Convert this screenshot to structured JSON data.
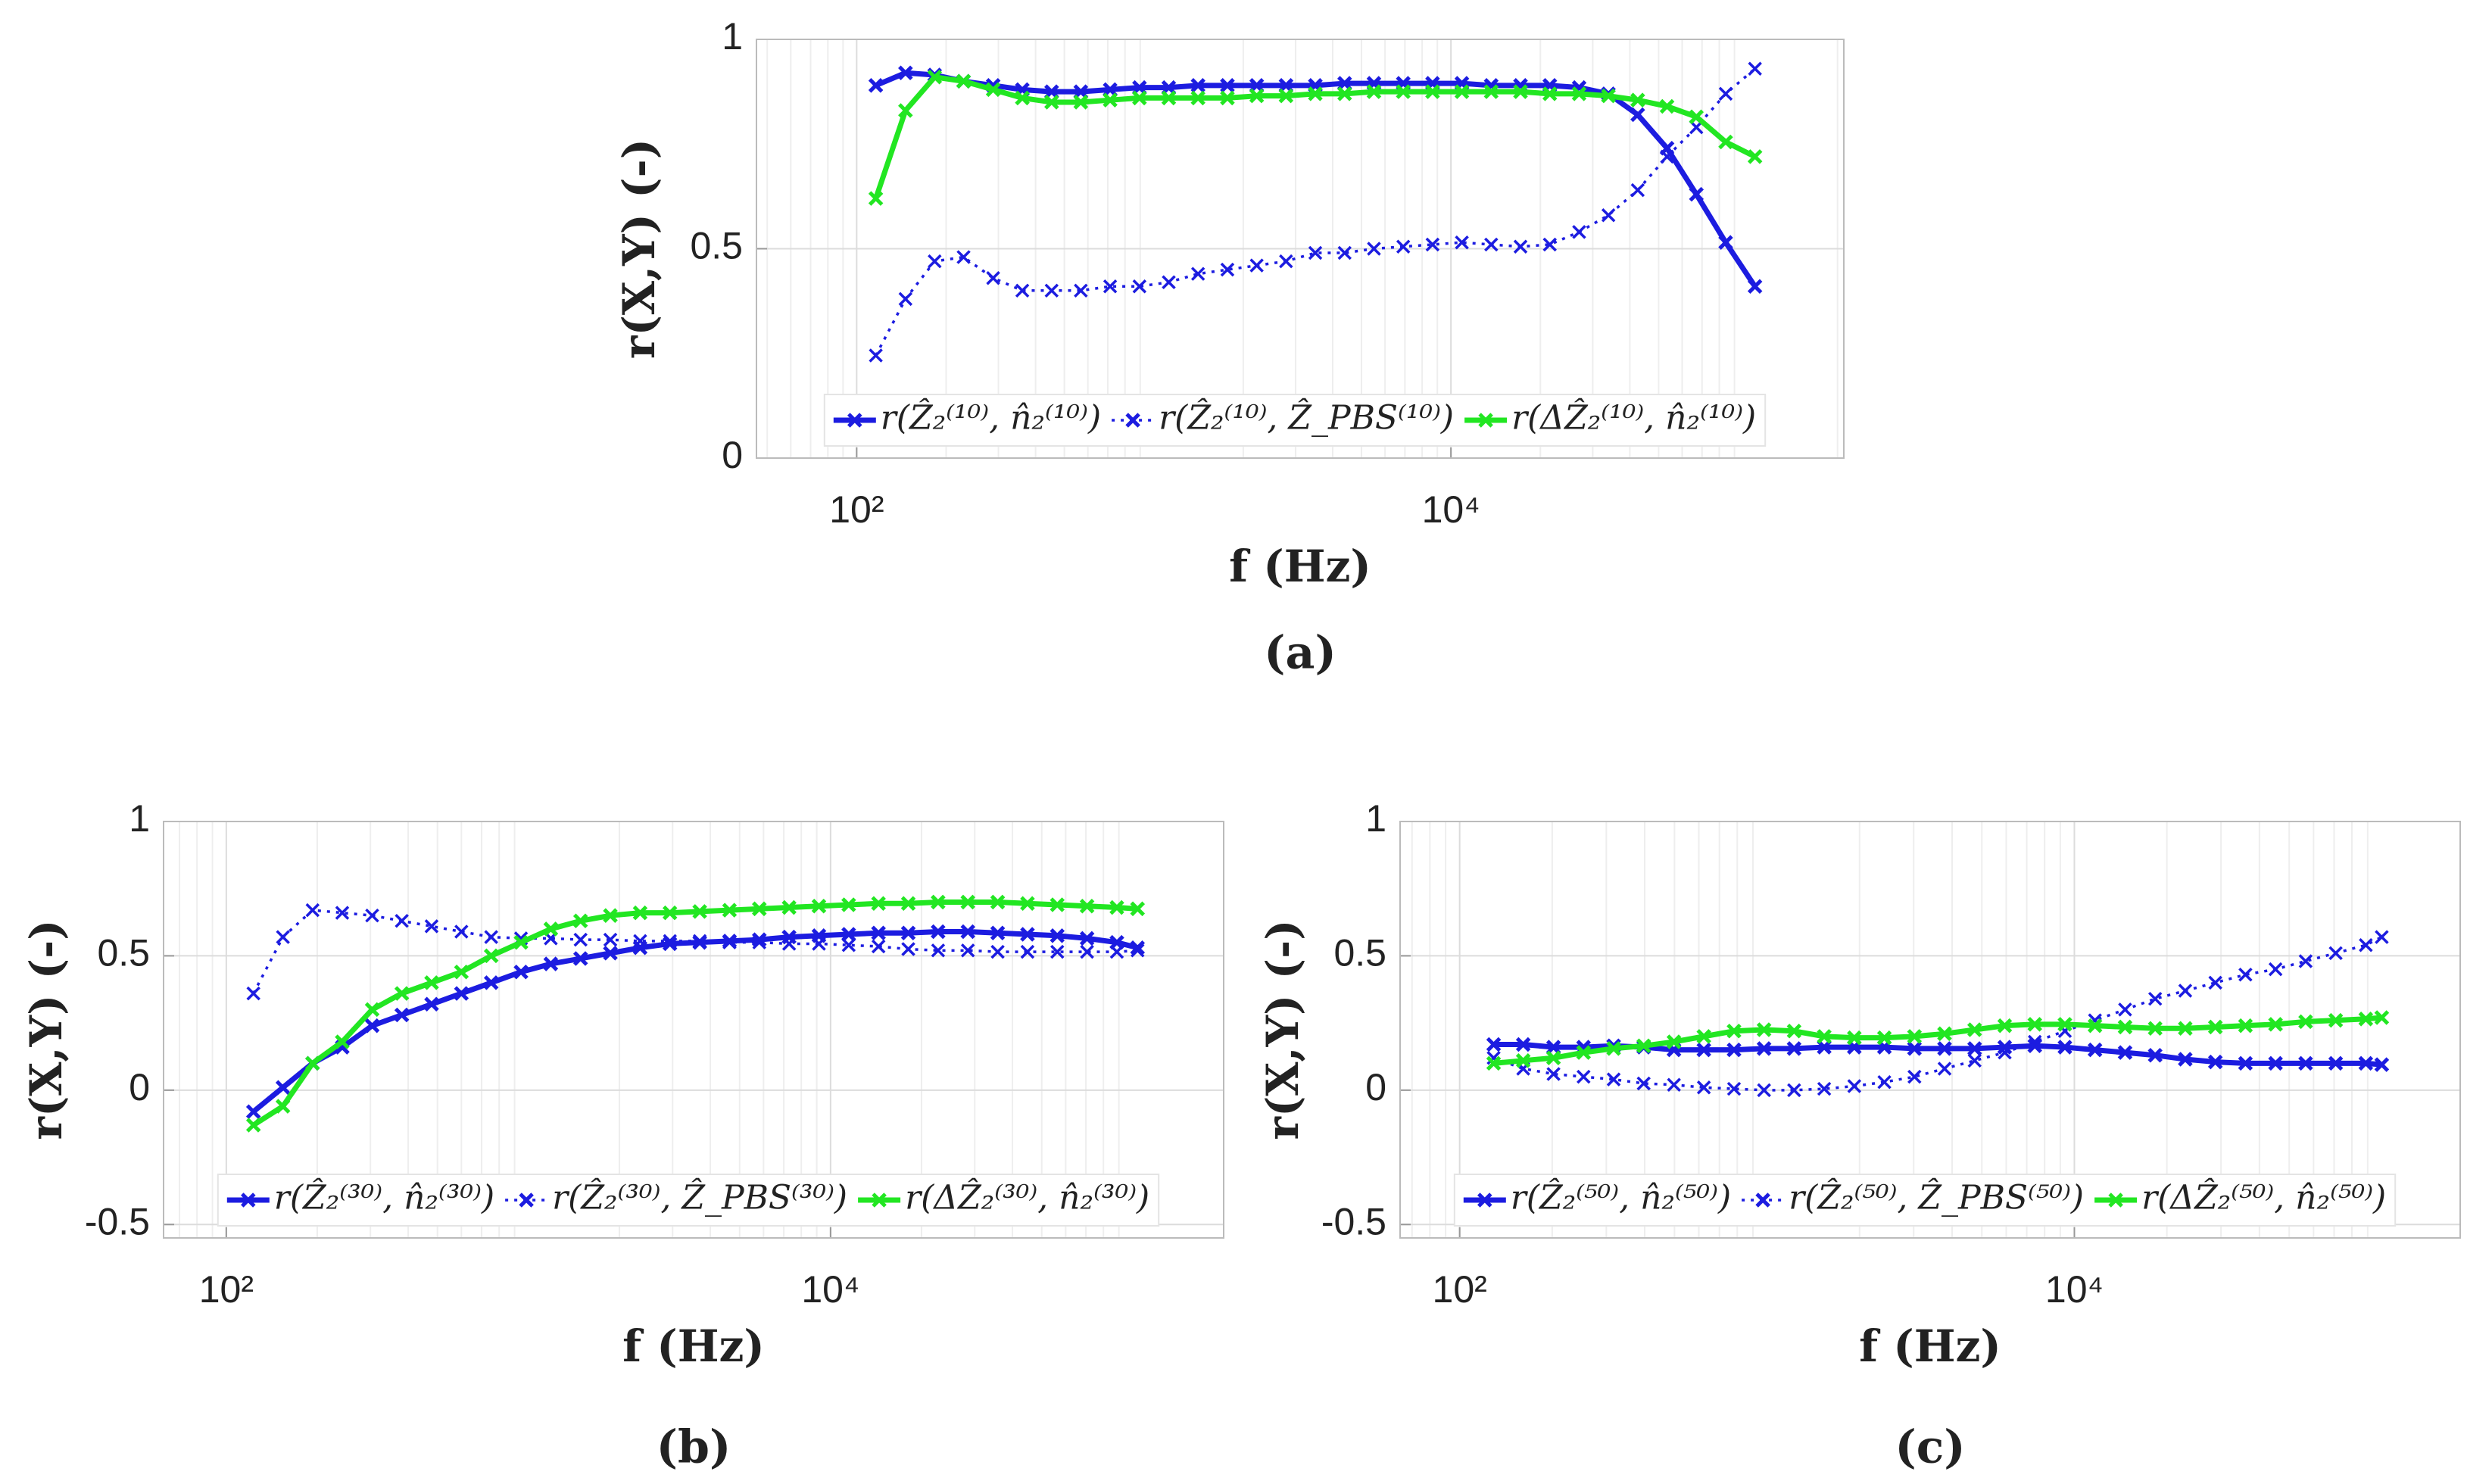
{
  "chart_data": [
    {
      "type": "line",
      "panel_label": "(a)",
      "xlabel": "f (Hz)",
      "ylabel": "r(X,Y) (-)",
      "xscale": "log",
      "grid": true,
      "minor_grid": true,
      "legend": "south",
      "xlim": [
        46,
        210000
      ],
      "ylim": [
        0,
        1
      ],
      "xticks": [
        {
          "value": 100,
          "label": "10²"
        },
        {
          "value": 10000,
          "label": "10⁴"
        }
      ],
      "yticks": [
        0,
        0.5,
        1
      ],
      "x": [
        116,
        146,
        183,
        229,
        288,
        361,
        453,
        568,
        713,
        895,
        1123,
        1409,
        1769,
        2220,
        2786,
        3496,
        4388,
        5507,
        6911,
        8673,
        10885,
        13661,
        17145,
        21516,
        27003,
        33889,
        42530,
        53375,
        66986,
        84067,
        105504
      ],
      "series": [
        {
          "name": "r(Ẑ₂⁽¹⁰⁾, n̂₂⁽¹⁰⁾)",
          "color": "#1c1ce0",
          "dash": "solid",
          "values": [
            0.89,
            0.92,
            0.915,
            0.9,
            0.89,
            0.88,
            0.875,
            0.875,
            0.88,
            0.885,
            0.885,
            0.89,
            0.89,
            0.89,
            0.89,
            0.89,
            0.895,
            0.895,
            0.895,
            0.895,
            0.895,
            0.89,
            0.89,
            0.89,
            0.885,
            0.87,
            0.82,
            0.74,
            0.63,
            0.515,
            0.41
          ]
        },
        {
          "name": "r(Ẑ₂⁽¹⁰⁾, Ẑ_PBS⁽¹⁰⁾)",
          "color": "#1c1ce0",
          "dash": "dotted",
          "values": [
            0.245,
            0.38,
            0.47,
            0.48,
            0.43,
            0.4,
            0.4,
            0.4,
            0.41,
            0.41,
            0.42,
            0.44,
            0.45,
            0.46,
            0.47,
            0.49,
            0.49,
            0.5,
            0.505,
            0.51,
            0.515,
            0.51,
            0.505,
            0.51,
            0.54,
            0.58,
            0.64,
            0.72,
            0.79,
            0.87,
            0.93
          ]
        },
        {
          "name": "r(ΔẐ₂⁽¹⁰⁾, n̂₂⁽¹⁰⁾)",
          "color": "#22e622",
          "dash": "solid",
          "values": [
            0.62,
            0.83,
            0.91,
            0.9,
            0.88,
            0.86,
            0.85,
            0.85,
            0.855,
            0.86,
            0.86,
            0.86,
            0.86,
            0.865,
            0.865,
            0.87,
            0.87,
            0.875,
            0.875,
            0.875,
            0.875,
            0.875,
            0.875,
            0.87,
            0.87,
            0.865,
            0.855,
            0.84,
            0.815,
            0.755,
            0.72
          ]
        }
      ]
    },
    {
      "type": "line",
      "panel_label": "(b)",
      "xlabel": "f (Hz)",
      "ylabel": "r(X,Y) (-)",
      "xscale": "log",
      "grid": true,
      "minor_grid": true,
      "legend": "south",
      "xlim": [
        62,
        200000
      ],
      "ylim": [
        -0.55,
        1
      ],
      "xticks": [
        {
          "value": 100,
          "label": "10²"
        },
        {
          "value": 10000,
          "label": "10⁴"
        }
      ],
      "yticks": [
        -0.5,
        0,
        0.5,
        1
      ],
      "x": [
        123,
        154,
        193,
        242,
        304,
        381,
        478,
        600,
        753,
        945,
        1186,
        1488,
        1867,
        2343,
        2940,
        3690,
        4630,
        5810,
        7292,
        9151,
        11483,
        14410,
        18084,
        22694,
        28479,
        35738,
        44848,
        56280,
        70626,
        88629,
        103753
      ],
      "series": [
        {
          "name": "r(Ẑ₂⁽³⁰⁾, n̂₂⁽³⁰⁾)",
          "color": "#1c1ce0",
          "dash": "solid",
          "values": [
            -0.08,
            0.01,
            0.1,
            0.16,
            0.24,
            0.28,
            0.32,
            0.36,
            0.4,
            0.44,
            0.47,
            0.49,
            0.51,
            0.53,
            0.545,
            0.55,
            0.555,
            0.56,
            0.57,
            0.575,
            0.58,
            0.585,
            0.585,
            0.59,
            0.59,
            0.585,
            0.58,
            0.575,
            0.565,
            0.55,
            0.53
          ]
        },
        {
          "name": "r(Ẑ₂⁽³⁰⁾, Ẑ_PBS⁽³⁰⁾)",
          "color": "#1c1ce0",
          "dash": "dotted",
          "values": [
            0.36,
            0.57,
            0.67,
            0.66,
            0.65,
            0.63,
            0.61,
            0.59,
            0.57,
            0.565,
            0.565,
            0.56,
            0.56,
            0.555,
            0.555,
            0.555,
            0.55,
            0.55,
            0.545,
            0.545,
            0.54,
            0.535,
            0.525,
            0.52,
            0.52,
            0.515,
            0.515,
            0.515,
            0.515,
            0.515,
            0.52
          ]
        },
        {
          "name": "r(ΔẐ₂⁽³⁰⁾, n̂₂⁽³⁰⁾)",
          "color": "#22e622",
          "dash": "solid",
          "values": [
            -0.13,
            -0.06,
            0.1,
            0.18,
            0.3,
            0.36,
            0.4,
            0.44,
            0.5,
            0.55,
            0.6,
            0.63,
            0.65,
            0.66,
            0.66,
            0.665,
            0.67,
            0.675,
            0.68,
            0.685,
            0.69,
            0.695,
            0.695,
            0.7,
            0.7,
            0.7,
            0.695,
            0.69,
            0.685,
            0.68,
            0.675
          ]
        }
      ]
    },
    {
      "type": "line",
      "panel_label": "(c)",
      "xlabel": "f (Hz)",
      "ylabel": "r(X,Y) (-)",
      "xscale": "log",
      "grid": true,
      "minor_grid": true,
      "legend": "south",
      "xlim": [
        64,
        180000
      ],
      "ylim": [
        -0.55,
        1
      ],
      "xticks": [
        {
          "value": 100,
          "label": "10²"
        },
        {
          "value": 10000,
          "label": "10⁴"
        }
      ],
      "yticks": [
        -0.5,
        0,
        0.5,
        1
      ],
      "x": [
        129,
        161,
        202,
        253,
        317,
        397,
        498,
        623,
        781,
        978,
        1225,
        1535,
        1923,
        2409,
        3018,
        3781,
        4737,
        5935,
        7435,
        9315,
        11670,
        14621,
        18318,
        22950,
        28753,
        36023,
        45131,
        56542,
        70838,
        88749,
        100000
      ],
      "series": [
        {
          "name": "r(Ẑ₂⁽⁵⁰⁾, n̂₂⁽⁵⁰⁾)",
          "color": "#1c1ce0",
          "dash": "solid",
          "values": [
            0.17,
            0.17,
            0.16,
            0.16,
            0.165,
            0.16,
            0.15,
            0.15,
            0.15,
            0.155,
            0.155,
            0.16,
            0.16,
            0.16,
            0.155,
            0.155,
            0.155,
            0.16,
            0.165,
            0.16,
            0.15,
            0.14,
            0.13,
            0.115,
            0.105,
            0.1,
            0.1,
            0.1,
            0.1,
            0.1,
            0.095
          ]
        },
        {
          "name": "r(Ẑ₂⁽⁵⁰⁾, Ẑ_PBS⁽⁵⁰⁾)",
          "color": "#1c1ce0",
          "dash": "dotted",
          "values": [
            0.12,
            0.08,
            0.06,
            0.05,
            0.04,
            0.025,
            0.02,
            0.01,
            0.005,
            0,
            0,
            0.005,
            0.015,
            0.03,
            0.05,
            0.08,
            0.11,
            0.14,
            0.18,
            0.22,
            0.26,
            0.3,
            0.34,
            0.37,
            0.4,
            0.43,
            0.45,
            0.48,
            0.51,
            0.54,
            0.57
          ]
        },
        {
          "name": "r(ΔẐ₂⁽⁵⁰⁾, n̂₂⁽⁵⁰⁾)",
          "color": "#22e622",
          "dash": "solid",
          "values": [
            0.1,
            0.11,
            0.12,
            0.14,
            0.155,
            0.165,
            0.18,
            0.2,
            0.22,
            0.225,
            0.22,
            0.2,
            0.195,
            0.195,
            0.2,
            0.21,
            0.225,
            0.24,
            0.245,
            0.245,
            0.24,
            0.235,
            0.23,
            0.23,
            0.235,
            0.24,
            0.245,
            0.255,
            0.26,
            0.265,
            0.27
          ]
        }
      ]
    }
  ]
}
